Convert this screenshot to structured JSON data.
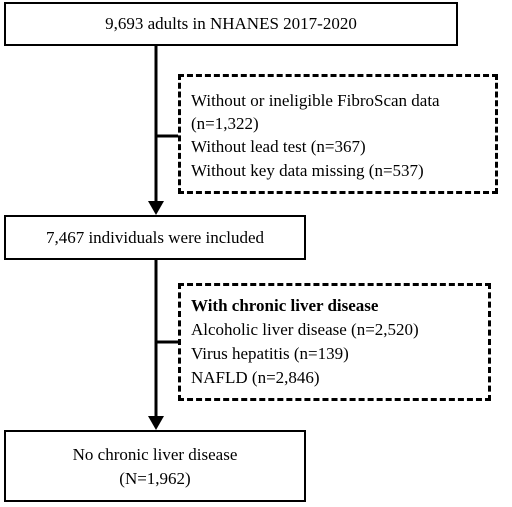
{
  "boxes": {
    "start": {
      "line1": "9,693 adults in NHANES 2017-2020"
    },
    "included": {
      "line1": "7,467 individuals were included"
    },
    "final": {
      "line1": "No chronic liver disease",
      "line2": "(N=1,962)"
    }
  },
  "exclusions_1": {
    "line1": "Without or ineligible FibroScan data",
    "line2": "(n=1,322)",
    "line3": "Without lead test (n=367)",
    "line4": "Without key data missing (n=537)"
  },
  "exclusions_2": {
    "heading": "With chronic liver disease",
    "line1": "Alcoholic liver disease (n=2,520)",
    "line2": "Virus hepatitis (n=139)",
    "line3": "NAFLD (n=2,846)"
  }
}
